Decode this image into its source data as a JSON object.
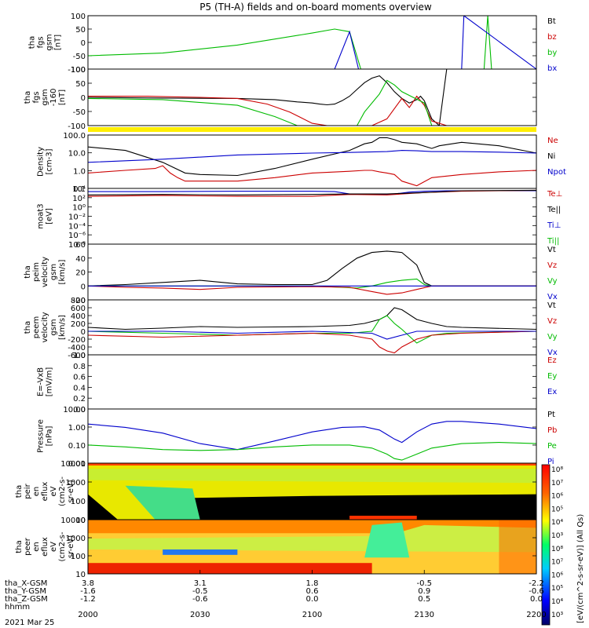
{
  "chart_data": {
    "type": "line",
    "title": "P5 (TH-A) fields and on-board moments overview",
    "date_label": "2021 Mar 25",
    "time_ticks": [
      "2000",
      "2030",
      "2100",
      "2130",
      "2200"
    ],
    "ephemeris": [
      {
        "label": "tha_X-GSM",
        "values": [
          "3.8",
          "3.1",
          "1.8",
          "-0.5",
          "-2.2"
        ]
      },
      {
        "label": "tha_Y-GSM",
        "values": [
          "-1.6",
          "-0.5",
          "0.6",
          "0.9",
          "-0.6"
        ]
      },
      {
        "label": "tha_Z-GSM",
        "values": [
          "-1.2",
          "-0.6",
          "0.0",
          "0.5",
          "0.0"
        ]
      },
      {
        "label": "hhmm",
        "values": []
      }
    ],
    "panels": [
      {
        "ylabel": [
          "tha",
          "fgs",
          "gsm",
          "[nT]"
        ],
        "ylim": [
          -100,
          100
        ],
        "ticks": [
          "100",
          "50",
          "0",
          "-50",
          "-100"
        ],
        "legend": [
          {
            "name": "Bt",
            "color": "#000000"
          },
          {
            "name": "bz",
            "color": "#cc0000"
          },
          {
            "name": "by",
            "color": "#00bb00"
          },
          {
            "name": "bx",
            "color": "#0000cc"
          }
        ]
      },
      {
        "ylabel": [
          "tha",
          "fgs",
          "gsm",
          "-160",
          "[nT]"
        ],
        "ylim": [
          -120,
          130
        ],
        "ticks": [
          "100",
          "50",
          "0",
          "-50",
          "-100"
        ],
        "legend": []
      },
      {
        "ylabel": [
          "Density",
          "[cm-3]"
        ],
        "ylim": [
          0.1,
          300
        ],
        "ticks": [
          "100.0",
          "10.0",
          "1.0",
          "0.1"
        ],
        "legend": [
          {
            "name": "Ne",
            "color": "#cc0000"
          },
          {
            "name": "Ni",
            "color": "#000000"
          },
          {
            "name": "Npot",
            "color": "#0000cc"
          }
        ]
      },
      {
        "ylabel": [
          "moat3",
          "[eV]"
        ],
        "ylim": [
          -8,
          4
        ],
        "ticks": [
          "10⁴",
          "10²",
          "10⁰",
          "10⁻²",
          "10⁻⁴",
          "10⁻⁶",
          "10⁻⁸"
        ],
        "legend": [
          {
            "name": "Te⊥",
            "color": "#cc0000"
          },
          {
            "name": "Te||",
            "color": "#000000"
          },
          {
            "name": "Ti⊥",
            "color": "#0000cc"
          },
          {
            "name": "Ti||",
            "color": "#00bb00"
          }
        ]
      },
      {
        "ylabel": [
          "tha",
          "peim",
          "velocity",
          "gsm",
          "[km/s]"
        ],
        "ylim": [
          -20,
          60
        ],
        "ticks": [
          "60",
          "40",
          "20",
          "0",
          "-20"
        ],
        "legend": [
          {
            "name": "Vt",
            "color": "#000000"
          },
          {
            "name": "Vz",
            "color": "#cc0000"
          },
          {
            "name": "Vy",
            "color": "#00bb00"
          },
          {
            "name": "Vx",
            "color": "#0000cc"
          }
        ]
      },
      {
        "ylabel": [
          "tha",
          "peem",
          "velocity",
          "gsm",
          "[km/s]"
        ],
        "ylim": [
          -600,
          800
        ],
        "ticks": [
          "800",
          "600",
          "400",
          "200",
          "0",
          "-200",
          "-400",
          "-600"
        ],
        "legend": [
          {
            "name": "Vt",
            "color": "#000000"
          },
          {
            "name": "Vz",
            "color": "#cc0000"
          },
          {
            "name": "Vy",
            "color": "#00bb00"
          },
          {
            "name": "Vx",
            "color": "#0000cc"
          }
        ]
      },
      {
        "ylabel": [
          "E=-VxB",
          "[mV/m]"
        ],
        "ylim": [
          0,
          1
        ],
        "ticks": [
          "1.0",
          "0.8",
          "0.6",
          "0.4",
          "0.2",
          "0.0"
        ],
        "legend": [
          {
            "name": "Ez",
            "color": "#cc0000"
          },
          {
            "name": "Ey",
            "color": "#00bb00"
          },
          {
            "name": "Ex",
            "color": "#0000cc"
          }
        ]
      },
      {
        "ylabel": [
          "Pressure",
          "[nPa]"
        ],
        "ylim": [
          0.005,
          20
        ],
        "ticks": [
          "10.00",
          "1.00",
          "0.10",
          "0.01"
        ],
        "legend": [
          {
            "name": "Pt",
            "color": "#000000"
          },
          {
            "name": "Pb",
            "color": "#cc0000"
          },
          {
            "name": "Pe",
            "color": "#00bb00"
          },
          {
            "name": "Pi",
            "color": "#0000cc"
          }
        ]
      },
      {
        "ylabel": [
          "tha",
          "peir",
          "en",
          "eflux",
          "eV",
          "(cm2-s-",
          "sr-eV)"
        ],
        "ylim": [
          5,
          20000
        ],
        "ticks": [
          "10000",
          "1000",
          "100",
          "10"
        ],
        "legend": []
      },
      {
        "ylabel": [
          "tha",
          "peer",
          "en",
          "eflux",
          "eV",
          "(cm2-s-",
          "sr-eV)"
        ],
        "ylim": [
          5,
          20000
        ],
        "ticks": [
          "10000",
          "1000",
          "100",
          "10"
        ],
        "legend": []
      }
    ],
    "colorbar": {
      "label": "[eV/(cm^2-s-sr-eV)] (All Qs)",
      "ticks": [
        "10⁸",
        "10⁷",
        "10⁶",
        "10⁵",
        "10⁴",
        "10³",
        "10⁸",
        "10⁷",
        "10⁶",
        "10⁵",
        "10⁴",
        "10³"
      ]
    },
    "series": [
      {
        "panel": 0,
        "name": "by",
        "color": "#00bb00",
        "t": [
          0,
          10,
          20,
          30,
          33,
          35,
          36.5,
          38,
          50,
          53,
          53.5,
          54,
          60
        ],
        "v": [
          -50,
          -40,
          -10,
          35,
          50,
          40,
          -100,
          -100,
          -100,
          -100,
          100,
          -100,
          -100
        ]
      },
      {
        "panel": 0,
        "name": "bx",
        "color": "#0000cc",
        "t": [
          0,
          33,
          35,
          36.2,
          50,
          50.3,
          60
        ],
        "v": [
          -100,
          -100,
          40,
          -100,
          -100,
          100,
          -100
        ]
      },
      {
        "panel": 0,
        "name": "Bt",
        "color": "#000000",
        "t": [
          0,
          60
        ],
        "v": [
          130,
          130
        ]
      },
      {
        "panel": 1,
        "name": "Bt",
        "color": "#000000",
        "t": [
          0,
          10,
          20,
          25,
          28,
          30,
          31,
          32,
          33,
          34,
          35,
          36,
          37,
          38,
          39,
          40,
          41,
          42,
          43,
          44,
          44.5,
          45,
          46,
          47,
          48,
          60
        ],
        "v": [
          5,
          2,
          0,
          -5,
          -15,
          -20,
          -25,
          -28,
          -25,
          -10,
          10,
          40,
          70,
          90,
          100,
          70,
          30,
          0,
          -20,
          -5,
          10,
          -10,
          -90,
          -120,
          130,
          130
        ]
      },
      {
        "panel": 1,
        "name": "bz",
        "color": "#cc0000",
        "t": [
          0,
          8,
          10,
          15,
          20,
          24,
          27,
          30,
          32,
          34,
          36,
          38,
          40,
          42,
          43,
          44,
          45,
          46,
          48,
          60
        ],
        "v": [
          10,
          10,
          8,
          5,
          0,
          -25,
          -60,
          -110,
          -130,
          -130,
          -130,
          -120,
          -90,
          0,
          -40,
          10,
          -30,
          -100,
          -130,
          -130
        ]
      },
      {
        "panel": 1,
        "name": "by",
        "color": "#00bb00",
        "t": [
          0,
          10,
          20,
          25,
          28,
          30,
          31,
          36,
          37,
          39,
          40,
          41,
          42,
          45,
          46,
          48,
          60
        ],
        "v": [
          0,
          -5,
          -30,
          -80,
          -120,
          -130,
          -130,
          -130,
          -60,
          20,
          80,
          60,
          30,
          -20,
          -130,
          -130,
          -130
        ]
      },
      {
        "panel": 2,
        "name": "Ni",
        "color": "#000000",
        "t": [
          0,
          5,
          10,
          13,
          15,
          20,
          25,
          30,
          35,
          37,
          38,
          39,
          40,
          41,
          42,
          44,
          46,
          47,
          50,
          55,
          60
        ],
        "v": [
          50,
          30,
          5,
          1,
          0.8,
          0.7,
          2,
          8,
          30,
          80,
          100,
          200,
          200,
          150,
          100,
          80,
          40,
          60,
          100,
          60,
          20
        ]
      },
      {
        "panel": 2,
        "name": "Ne",
        "color": "#cc0000",
        "t": [
          0,
          5,
          9,
          10,
          11,
          12,
          13,
          15,
          20,
          25,
          30,
          35,
          37,
          38,
          39,
          40,
          41,
          42,
          44,
          46,
          50,
          55,
          60
        ],
        "v": [
          1,
          1.5,
          2,
          3,
          1,
          0.5,
          0.3,
          0.3,
          0.3,
          0.5,
          1,
          1.3,
          1.5,
          1.5,
          1.2,
          1,
          0.8,
          0.3,
          0.15,
          0.5,
          0.8,
          1.2,
          1.5
        ]
      },
      {
        "panel": 2,
        "name": "Npot",
        "color": "#0000cc",
        "t": [
          0,
          10,
          20,
          30,
          35,
          40,
          42,
          44,
          46,
          50,
          55,
          60
        ],
        "v": [
          5,
          8,
          15,
          20,
          22,
          25,
          30,
          28,
          25,
          25,
          23,
          20
        ]
      },
      {
        "panel": 3,
        "name": "Ti⊥",
        "color": "#0000cc",
        "t": [
          0,
          10,
          20,
          30,
          33,
          35,
          38,
          40,
          41,
          43,
          45,
          48,
          60
        ],
        "v": [
          3.3,
          3.3,
          3.4,
          3.4,
          3.3,
          2.8,
          2.7,
          2.7,
          2.8,
          3.2,
          3.4,
          3.5,
          3.5
        ]
      },
      {
        "panel": 3,
        "name": "Te⊥",
        "color": "#cc0000",
        "t": [
          0,
          10,
          20,
          30,
          35,
          40,
          45,
          50,
          55,
          60
        ],
        "v": [
          2.3,
          2.5,
          2.3,
          2.3,
          2.7,
          2.6,
          3.1,
          3.4,
          3.5,
          3.6
        ]
      },
      {
        "panel": 3,
        "name": "Te||",
        "color": "#000000",
        "t": [
          0,
          10,
          20,
          30,
          35,
          40,
          45,
          50,
          60
        ],
        "v": [
          2.6,
          2.7,
          2.6,
          2.7,
          2.8,
          2.8,
          3.1,
          3.5,
          3.6
        ]
      },
      {
        "panel": 4,
        "name": "Vt",
        "color": "#000000",
        "t": [
          0,
          5,
          10,
          15,
          20,
          25,
          30,
          32,
          34,
          36,
          38,
          40,
          42,
          44,
          45,
          46,
          60
        ],
        "v": [
          0,
          2,
          5,
          8,
          3,
          2,
          2,
          8,
          25,
          40,
          48,
          50,
          48,
          30,
          5,
          0,
          0
        ]
      },
      {
        "panel": 4,
        "name": "Vy",
        "color": "#00bb00",
        "t": [
          0,
          30,
          36,
          38,
          40,
          42,
          44,
          45,
          46,
          60
        ],
        "v": [
          0,
          0,
          -3,
          0,
          5,
          8,
          10,
          2,
          0,
          0
        ]
      },
      {
        "panel": 4,
        "name": "Vz",
        "color": "#cc0000",
        "t": [
          0,
          5,
          10,
          15,
          20,
          30,
          35,
          38,
          40,
          42,
          44,
          46,
          60
        ],
        "v": [
          0,
          -2,
          -3,
          -5,
          -2,
          -1,
          -2,
          -8,
          -12,
          -10,
          -5,
          0,
          0
        ]
      },
      {
        "panel": 4,
        "name": "Vx",
        "color": "#0000cc",
        "t": [
          0,
          60
        ],
        "v": [
          0,
          0
        ]
      },
      {
        "panel": 5,
        "name": "Vt",
        "color": "#000000",
        "t": [
          0,
          5,
          10,
          15,
          20,
          25,
          30,
          35,
          37,
          39,
          40,
          41,
          42,
          44,
          46,
          48,
          50,
          60
        ],
        "v": [
          100,
          50,
          80,
          120,
          100,
          110,
          120,
          150,
          200,
          300,
          400,
          600,
          550,
          300,
          200,
          120,
          100,
          50
        ]
      },
      {
        "panel": 5,
        "name": "Vy",
        "color": "#00bb00",
        "t": [
          0,
          10,
          20,
          30,
          35,
          38,
          39,
          40,
          41,
          42,
          44,
          46,
          48,
          60
        ],
        "v": [
          0,
          -50,
          -100,
          -50,
          -50,
          0,
          300,
          400,
          200,
          50,
          -300,
          -100,
          -50,
          0
        ]
      },
      {
        "panel": 5,
        "name": "Vz",
        "color": "#cc0000",
        "t": [
          0,
          10,
          20,
          30,
          35,
          38,
          39,
          40,
          41,
          42,
          44,
          46,
          50,
          60
        ],
        "v": [
          -100,
          -150,
          -100,
          -50,
          -100,
          -200,
          -400,
          -500,
          -550,
          -400,
          -200,
          -100,
          -50,
          0
        ]
      },
      {
        "panel": 5,
        "name": "Vx",
        "color": "#0000cc",
        "t": [
          0,
          10,
          20,
          30,
          38,
          40,
          42,
          44,
          50,
          60
        ],
        "v": [
          0,
          0,
          -50,
          0,
          -50,
          -200,
          -100,
          0,
          0,
          0
        ]
      },
      {
        "panel": 7,
        "name": "Pi",
        "color": "#0000cc",
        "t": [
          0,
          5,
          10,
          15,
          20,
          25,
          30,
          34,
          37,
          39,
          40,
          41,
          42,
          44,
          46,
          48,
          50,
          55,
          60
        ],
        "v": [
          2,
          1.2,
          0.5,
          0.1,
          0.04,
          0.15,
          0.6,
          1.2,
          1.3,
          0.8,
          0.4,
          0.2,
          0.12,
          0.6,
          2,
          3,
          3,
          2,
          1
        ]
      },
      {
        "panel": 7,
        "name": "Pe",
        "color": "#00bb00",
        "t": [
          0,
          5,
          10,
          15,
          20,
          25,
          30,
          35,
          38,
          40,
          41,
          42,
          44,
          46,
          50,
          55,
          60
        ],
        "v": [
          0.08,
          0.06,
          0.04,
          0.035,
          0.04,
          0.06,
          0.08,
          0.08,
          0.05,
          0.02,
          0.01,
          0.008,
          0.02,
          0.05,
          0.1,
          0.12,
          0.1
        ]
      }
    ],
    "spectrograms": [
      {
        "panel": 8,
        "name": "peir"
      },
      {
        "panel": 9,
        "name": "peer"
      }
    ]
  }
}
